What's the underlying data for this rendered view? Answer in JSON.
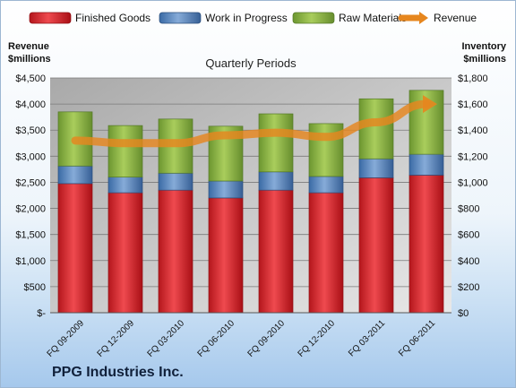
{
  "chart_data": {
    "type": "bar",
    "stacked": true,
    "title": "Quarterly Periods",
    "company": "PPG Industries Inc.",
    "left_axis_label": [
      "Revenue",
      "$millions"
    ],
    "right_axis_label": [
      "Inventory",
      "$millions"
    ],
    "categories": [
      "FQ 09-2009",
      "FQ 12-2009",
      "FQ 03-2010",
      "FQ 06-2010",
      "FQ 09-2010",
      "FQ 12-2010",
      "FQ 03-2011",
      "FQ 06-2011"
    ],
    "left_ticks": [
      "$-",
      "$500",
      "$1,000",
      "$1,500",
      "$2,000",
      "$2,500",
      "$3,000",
      "$3,500",
      "$4,000",
      "$4,500"
    ],
    "right_ticks": [
      "$0",
      "$200",
      "$400",
      "$600",
      "$800",
      "$1,000",
      "$1,200",
      "$1,400",
      "$1,600",
      "$1,800"
    ],
    "ylim_left": [
      0,
      4500
    ],
    "ylim_right": [
      0,
      1800
    ],
    "grid": true,
    "legend_position": "top",
    "series": [
      {
        "name": "Finished Goods",
        "kind": "bar",
        "axis": "right",
        "color": "#d9262b",
        "values": [
          990,
          920,
          940,
          880,
          940,
          920,
          1035,
          1055
        ]
      },
      {
        "name": "Work in Progress",
        "kind": "bar",
        "axis": "right",
        "color": "#4f81bd",
        "values": [
          135,
          120,
          130,
          130,
          140,
          125,
          145,
          160
        ]
      },
      {
        "name": "Raw Materials",
        "kind": "bar",
        "axis": "right",
        "color": "#8db440",
        "values": [
          415,
          395,
          415,
          420,
          445,
          405,
          460,
          490
        ]
      },
      {
        "name": "Revenue",
        "kind": "line",
        "axis": "left",
        "color": "#e6861e",
        "values": [
          3300,
          3250,
          3250,
          3400,
          3450,
          3370,
          3650,
          4000
        ]
      }
    ]
  }
}
